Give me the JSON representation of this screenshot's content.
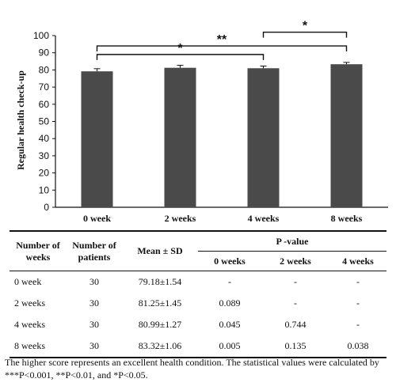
{
  "chart_data": {
    "type": "bar",
    "categories": [
      "0 week",
      "2 weeks",
      "4 weeks",
      "8 weeks"
    ],
    "values": [
      79.18,
      81.25,
      80.99,
      83.32
    ],
    "errors": [
      1.54,
      1.45,
      1.27,
      1.06
    ],
    "ylabel": "Regular health check-up",
    "xlabel": "",
    "ylim": [
      0,
      100
    ],
    "yticks": [
      "0",
      "10",
      "20",
      "30",
      "40",
      "50",
      "60",
      "70",
      "80",
      "90",
      "100"
    ],
    "bar_color": "#4a4a4a",
    "grid": false,
    "significance": [
      {
        "from": 0,
        "to": 2,
        "level": 89,
        "label": "*"
      },
      {
        "from": 0,
        "to": 3,
        "level": 94,
        "label": "**"
      },
      {
        "from": 2,
        "to": 3,
        "level": 102,
        "label": "*"
      }
    ]
  },
  "table": {
    "headers": {
      "col1": "Number of weeks",
      "col2": "Number of patients",
      "col3": "Mean ± SD",
      "pvalue": "P -value",
      "sub": [
        "0 weeks",
        "2 weeks",
        "4 weeks"
      ]
    },
    "rows": [
      {
        "label": "0  week",
        "n": "30",
        "mean": "79.18±1.54",
        "p0": "-",
        "p2": "-",
        "p4": "-"
      },
      {
        "label": "2 weeks",
        "n": "30",
        "mean": "81.25±1.45",
        "p0": "0.089",
        "p2": "-",
        "p4": "-"
      },
      {
        "label": "4 weeks",
        "n": "30",
        "mean": "80.99±1.27",
        "p0": "0.045",
        "p2": "0.744",
        "p4": "-"
      },
      {
        "label": "8 weeks",
        "n": "30",
        "mean": "83.32±1.06",
        "p0": "0.005",
        "p2": "0.135",
        "p4": "0.038"
      }
    ]
  },
  "footnote": "The higher score represents an excellent health condition. The statistical values were calculated by ***P<0.001, **P<0.01, and *P<0.05."
}
